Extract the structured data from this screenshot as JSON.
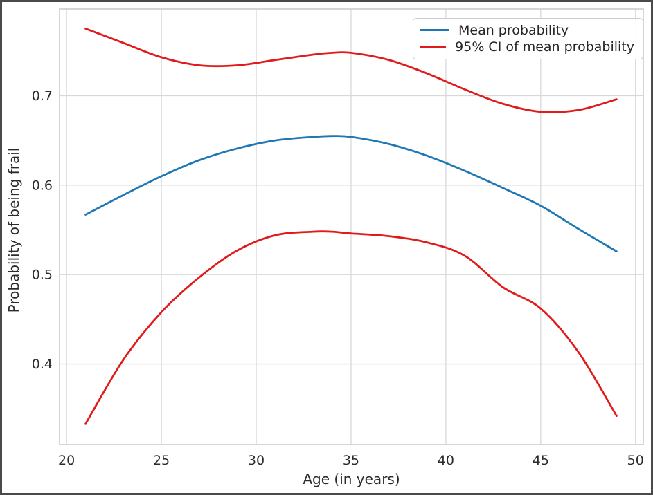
{
  "figure": {
    "background": "#ffffff",
    "border_color": "#4a4a4a",
    "grid_color": "#d8d8d8",
    "spine_color": "#c9c9c9",
    "text_color": "#2b2b2b"
  },
  "chart_data": {
    "type": "line",
    "title": "",
    "xlabel": "Age (in years)",
    "ylabel": "Probability of being frail",
    "xlim": [
      19.63,
      50.41
    ],
    "ylim": [
      0.31,
      0.797
    ],
    "xticks": [
      20,
      25,
      30,
      35,
      40,
      45,
      50
    ],
    "yticks": [
      0.4,
      0.5,
      0.6,
      0.7
    ],
    "grid": true,
    "legend_position": "upper right",
    "x": [
      21,
      23,
      25,
      27,
      29,
      31,
      33,
      34,
      35,
      37,
      39,
      41,
      43,
      45,
      47,
      49
    ],
    "series": [
      {
        "name": "Mean probability",
        "color": "#1f77b4",
        "values": [
          0.567,
          0.589,
          0.61,
          0.628,
          0.641,
          0.65,
          0.654,
          0.655,
          0.654,
          0.646,
          0.633,
          0.616,
          0.597,
          0.577,
          0.551,
          0.526
        ]
      },
      {
        "name": "95% CI of mean probability (upper)",
        "color": "#e01b1b",
        "values": [
          0.775,
          0.759,
          0.743,
          0.734,
          0.734,
          0.74,
          0.746,
          0.748,
          0.748,
          0.74,
          0.725,
          0.707,
          0.691,
          0.682,
          0.684,
          0.696
        ]
      },
      {
        "name": "95% CI of mean probability (lower)",
        "color": "#e01b1b",
        "values": [
          0.333,
          0.405,
          0.458,
          0.497,
          0.527,
          0.544,
          0.548,
          0.548,
          0.546,
          0.543,
          0.536,
          0.521,
          0.486,
          0.462,
          0.413,
          0.342
        ]
      }
    ],
    "legend": [
      {
        "label": "Mean probability",
        "color": "#1f77b4"
      },
      {
        "label": "95% CI of mean probability",
        "color": "#e01b1b"
      }
    ]
  }
}
